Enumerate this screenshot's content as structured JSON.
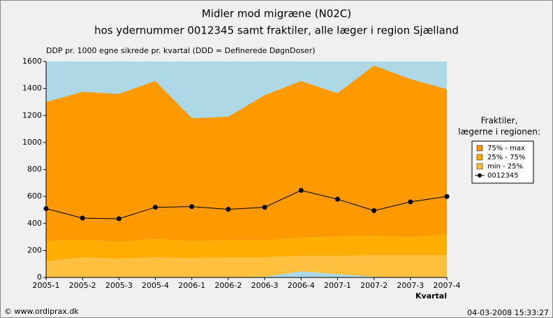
{
  "chart_data": {
    "type": "area",
    "title": [
      "Midler mod migræne (N02C)",
      "hos ydernummer 0012345 samt fraktiler, alle læger i region Sjælland"
    ],
    "subtitle": "DDP pr. 1000 egne sikrede pr. kvartal (DDD = Definerede DøgnDoser)",
    "x_label": "Kvartal",
    "legend_title": [
      "Fraktiler,",
      "lægerne i regionen:"
    ],
    "footer_left": "© www.ordiprax.dk",
    "footer_right": "04-03-2008 15:33:27",
    "categories": [
      "2005-1",
      "2005-2",
      "2005-3",
      "2005-4",
      "2006-1",
      "2006-2",
      "2006-3",
      "2006-4",
      "2007-1",
      "2007-2",
      "2007-3",
      "2007-4"
    ],
    "plot_background": "#add8e6",
    "series": [
      {
        "color": "#add8e6",
        "values": [
          0,
          0,
          0,
          0,
          0,
          0,
          5,
          45,
          25,
          5,
          0,
          0
        ]
      },
      {
        "name": "min - 25%",
        "color": "#ffc040",
        "values": [
          120,
          150,
          140,
          150,
          145,
          150,
          145,
          115,
          135,
          160,
          165,
          165
        ]
      },
      {
        "name": "25% - 75%",
        "color": "#ffae00",
        "values": [
          150,
          130,
          125,
          135,
          125,
          125,
          125,
          135,
          145,
          145,
          135,
          155
        ]
      },
      {
        "name": "75% - max",
        "color": "#ff9900",
        "values": [
          1030,
          1095,
          1095,
          1170,
          910,
          915,
          1075,
          1160,
          1060,
          1260,
          1170,
          1075
        ]
      },
      {
        "name": "0012345",
        "color": "#000000",
        "type": "line",
        "values": [
          510,
          440,
          435,
          520,
          525,
          505,
          520,
          645,
          580,
          495,
          560,
          600
        ]
      }
    ],
    "ylim": [
      0,
      1600
    ],
    "yticks": [
      0,
      200,
      400,
      600,
      800,
      1000,
      1200,
      1400,
      1600
    ]
  }
}
